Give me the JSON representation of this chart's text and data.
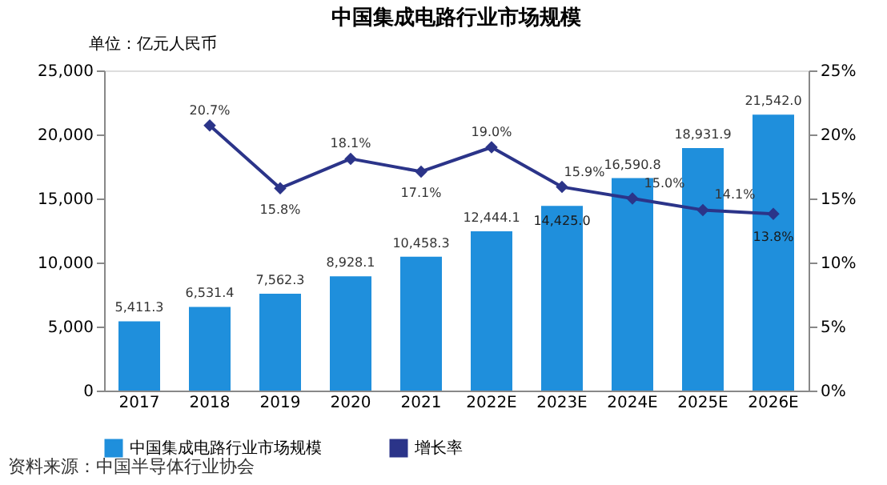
{
  "chart_data": {
    "type": "bar",
    "title": "中国集成电路行业市场规模",
    "ylabel": "单位：亿元人民币",
    "categories": [
      "2017",
      "2018",
      "2019",
      "2020",
      "2021",
      "2022E",
      "2023E",
      "2024E",
      "2025E",
      "2026E"
    ],
    "series": [
      {
        "name": "中国集成电路行业市场规模",
        "type": "bar",
        "color": "#1f8fdc",
        "values": [
          5411.3,
          6531.4,
          7562.3,
          8928.1,
          10458.3,
          12444.1,
          14425.0,
          16590.8,
          18931.9,
          21542.0
        ],
        "value_labels": [
          "5,411.3",
          "6,531.4",
          "7,562.3",
          "8,928.1",
          "10,458.3",
          "12,444.1",
          "14,425.0",
          "16,590.8",
          "18,931.9",
          "21,542.0"
        ]
      },
      {
        "name": "增长率",
        "type": "line",
        "axis": "y2",
        "color": "#2b3489",
        "marker": "diamond",
        "values": [
          null,
          20.7,
          15.8,
          18.1,
          17.1,
          19.0,
          15.9,
          15.0,
          14.1,
          13.8
        ],
        "value_labels": [
          null,
          "20.7%",
          "15.8%",
          "18.1%",
          "17.1%",
          "19.0%",
          "15.9%",
          "15.0%",
          "14.1%",
          "13.8%"
        ]
      }
    ],
    "ylim": [
      0,
      25000
    ],
    "yticks": [
      0,
      {
        "value": 5000,
        "label": "5,000"
      },
      {
        "value": 10000,
        "label": "10,000"
      },
      {
        "value": 15000,
        "label": "15,000"
      },
      {
        "value": 20000,
        "label": "20,000"
      },
      {
        "value": 25000,
        "label": "25,000"
      }
    ],
    "y2lim": [
      0,
      25
    ],
    "y2ticks": [
      {
        "value": 0,
        "label": "0%"
      },
      {
        "value": 5,
        "label": "5%"
      },
      {
        "value": 10,
        "label": "10%"
      },
      {
        "value": 15,
        "label": "15%"
      },
      {
        "value": 20,
        "label": "20%"
      },
      {
        "value": 25,
        "label": "25%"
      }
    ],
    "legend": "bottom",
    "grid": false,
    "annotations": [
      "资料来源：中国半导体行业协会"
    ]
  }
}
